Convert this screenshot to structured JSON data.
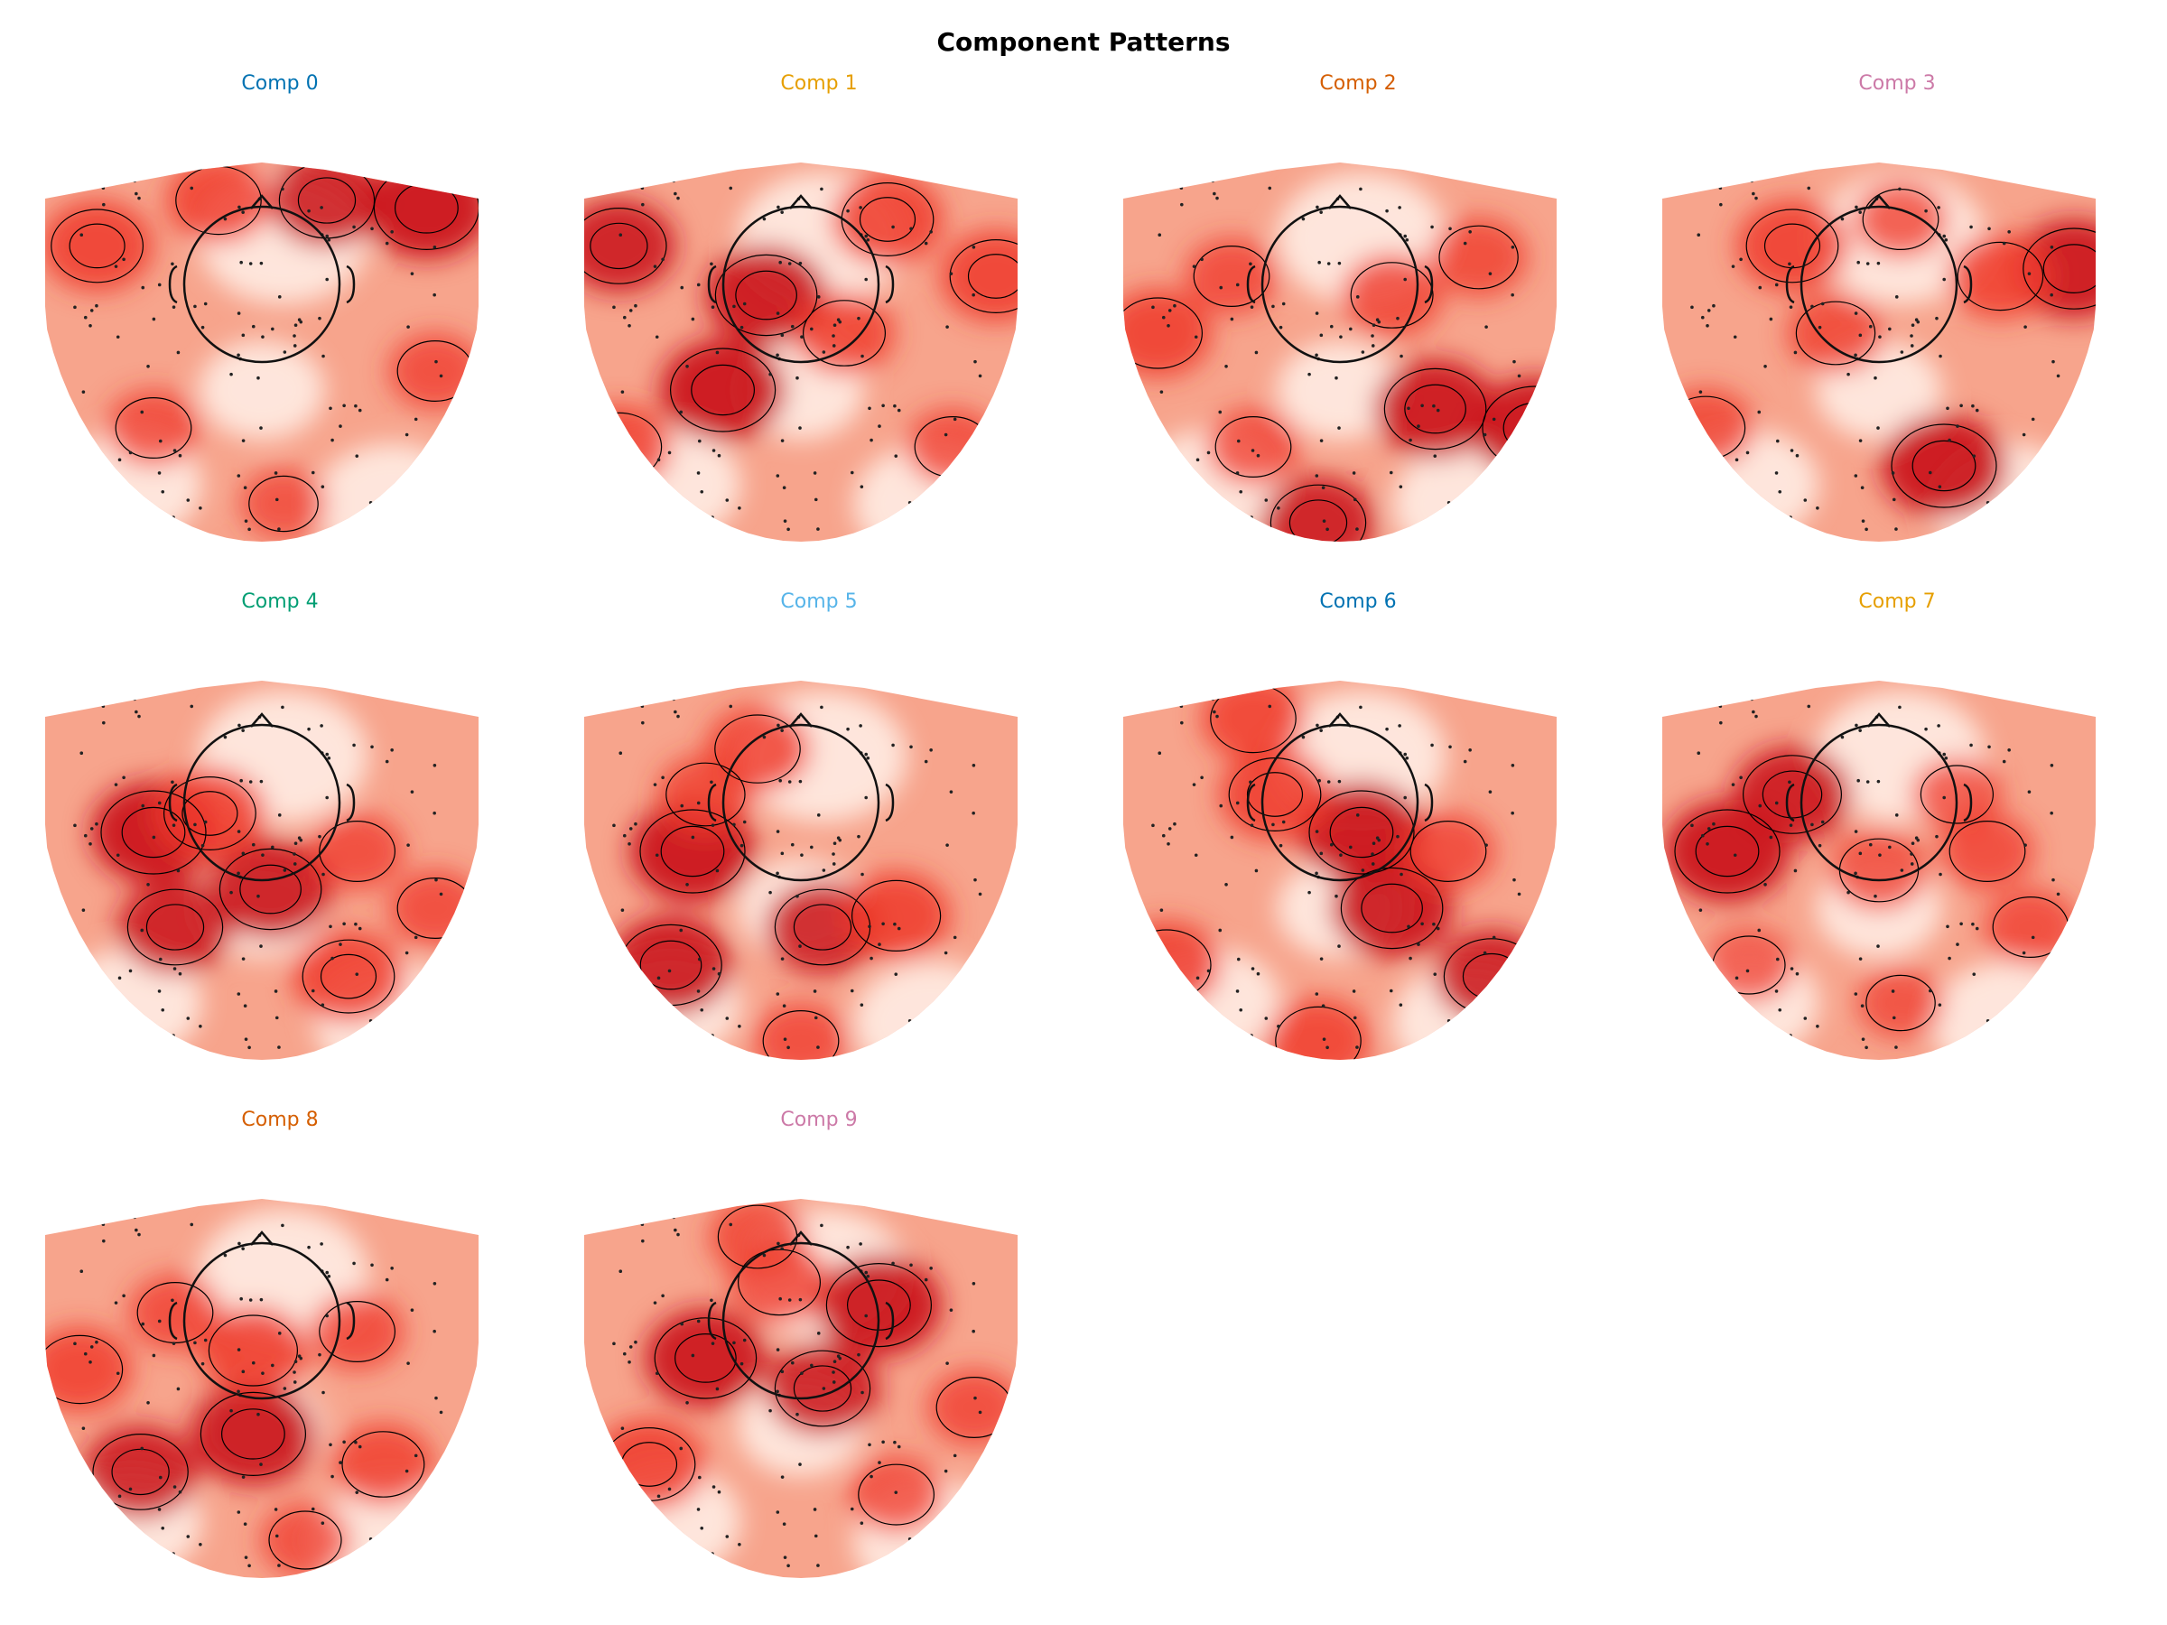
{
  "figure": {
    "title": "Component Patterns"
  },
  "chart_data": {
    "type": "heatmap",
    "title": "Component Patterns",
    "colormap": "Reds",
    "contours": true,
    "sensors_shown": true,
    "layout": {
      "rows": 3,
      "cols": 4
    },
    "panels": [
      {
        "title": "Comp 0",
        "title_color": "#0072b2",
        "hotspots": [
          [
            0.88,
            0.12,
            1.0
          ],
          [
            0.65,
            0.1,
            0.85
          ],
          [
            0.12,
            0.22,
            0.8
          ],
          [
            0.4,
            0.1,
            0.7
          ],
          [
            0.25,
            0.7,
            0.55
          ],
          [
            0.9,
            0.55,
            0.55
          ],
          [
            0.55,
            0.9,
            0.45
          ]
        ]
      },
      {
        "title": "Comp 1",
        "title_color": "#e69f00",
        "hotspots": [
          [
            0.32,
            0.6,
            1.0
          ],
          [
            0.42,
            0.35,
            0.95
          ],
          [
            0.08,
            0.22,
            0.85
          ],
          [
            0.95,
            0.3,
            0.8
          ],
          [
            0.7,
            0.15,
            0.8
          ],
          [
            0.6,
            0.45,
            0.65
          ],
          [
            0.08,
            0.75,
            0.7
          ],
          [
            0.85,
            0.75,
            0.55
          ]
        ]
      },
      {
        "title": "Comp 2",
        "title_color": "#d55e00",
        "hotspots": [
          [
            0.95,
            0.7,
            1.0
          ],
          [
            0.72,
            0.65,
            0.95
          ],
          [
            0.08,
            0.45,
            0.75
          ],
          [
            0.45,
            0.95,
            0.85
          ],
          [
            0.25,
            0.3,
            0.55
          ],
          [
            0.82,
            0.25,
            0.6
          ],
          [
            0.62,
            0.35,
            0.65
          ],
          [
            0.3,
            0.75,
            0.55
          ]
        ]
      },
      {
        "title": "Comp 3",
        "title_color": "#cc79a7",
        "hotspots": [
          [
            0.65,
            0.8,
            1.0
          ],
          [
            0.95,
            0.28,
            0.95
          ],
          [
            0.3,
            0.22,
            0.8
          ],
          [
            0.78,
            0.3,
            0.7
          ],
          [
            0.4,
            0.45,
            0.6
          ],
          [
            0.1,
            0.7,
            0.6
          ],
          [
            0.55,
            0.15,
            0.55
          ]
        ]
      },
      {
        "title": "Comp 4",
        "title_color": "#009e73",
        "hotspots": [
          [
            0.25,
            0.4,
            1.0
          ],
          [
            0.52,
            0.55,
            0.95
          ],
          [
            0.3,
            0.65,
            0.85
          ],
          [
            0.7,
            0.78,
            0.8
          ],
          [
            0.38,
            0.35,
            0.8
          ],
          [
            0.72,
            0.45,
            0.55
          ],
          [
            0.9,
            0.6,
            0.55
          ]
        ]
      },
      {
        "title": "Comp 5",
        "title_color": "#56b4e9",
        "hotspots": [
          [
            0.25,
            0.45,
            1.0
          ],
          [
            0.2,
            0.75,
            0.95
          ],
          [
            0.55,
            0.65,
            0.85
          ],
          [
            0.72,
            0.62,
            0.75
          ],
          [
            0.4,
            0.18,
            0.7
          ],
          [
            0.28,
            0.3,
            0.6
          ],
          [
            0.5,
            0.95,
            0.55
          ]
        ]
      },
      {
        "title": "Comp 6",
        "title_color": "#0072b2",
        "hotspots": [
          [
            0.55,
            0.4,
            1.0
          ],
          [
            0.62,
            0.6,
            0.95
          ],
          [
            0.35,
            0.3,
            0.8
          ],
          [
            0.85,
            0.78,
            0.85
          ],
          [
            0.1,
            0.75,
            0.75
          ],
          [
            0.3,
            0.1,
            0.7
          ],
          [
            0.45,
            0.95,
            0.7
          ],
          [
            0.75,
            0.45,
            0.55
          ]
        ]
      },
      {
        "title": "Comp 7",
        "title_color": "#e69f00",
        "hotspots": [
          [
            0.15,
            0.45,
            1.0
          ],
          [
            0.3,
            0.3,
            0.9
          ],
          [
            0.5,
            0.5,
            0.6
          ],
          [
            0.75,
            0.45,
            0.55
          ],
          [
            0.68,
            0.3,
            0.5
          ],
          [
            0.2,
            0.75,
            0.5
          ],
          [
            0.85,
            0.65,
            0.55
          ],
          [
            0.55,
            0.85,
            0.45
          ]
        ]
      },
      {
        "title": "Comp 8",
        "title_color": "#d55e00",
        "hotspots": [
          [
            0.48,
            0.62,
            1.0
          ],
          [
            0.22,
            0.72,
            0.85
          ],
          [
            0.48,
            0.4,
            0.75
          ],
          [
            0.08,
            0.45,
            0.7
          ],
          [
            0.78,
            0.7,
            0.65
          ],
          [
            0.72,
            0.35,
            0.55
          ],
          [
            0.3,
            0.3,
            0.55
          ],
          [
            0.6,
            0.9,
            0.5
          ]
        ]
      },
      {
        "title": "Comp 9",
        "title_color": "#cc79a7",
        "hotspots": [
          [
            0.68,
            0.28,
            1.0
          ],
          [
            0.28,
            0.42,
            0.95
          ],
          [
            0.55,
            0.5,
            0.85
          ],
          [
            0.15,
            0.7,
            0.8
          ],
          [
            0.45,
            0.22,
            0.65
          ],
          [
            0.72,
            0.78,
            0.55
          ],
          [
            0.4,
            0.1,
            0.6
          ],
          [
            0.9,
            0.55,
            0.55
          ]
        ]
      }
    ]
  }
}
